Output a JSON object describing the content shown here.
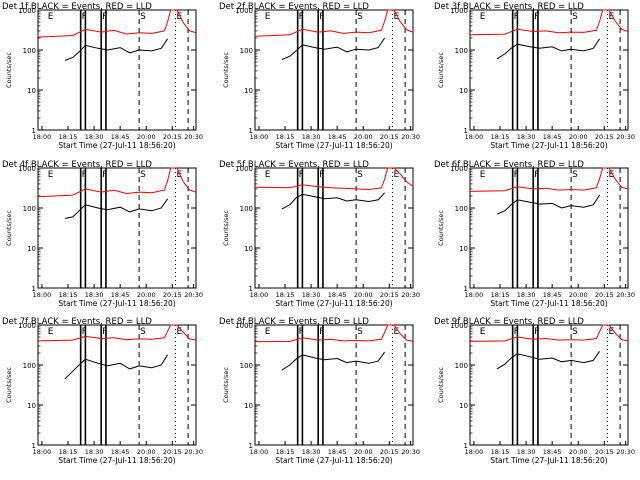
{
  "figure": {
    "xlabel": "Start Time (27-Jul-11 18:56:20)",
    "ylabel": "Counts/sec"
  },
  "chart_data": [
    {
      "type": "line",
      "title": "Det  1f BLACK = Events, RED = LLD",
      "ylim": [
        1,
        1000
      ],
      "yscale": "log",
      "y_ticks": [
        "1",
        "10",
        "100",
        "1000"
      ],
      "x_ticks": [
        "18:00",
        "18:15",
        "18:30",
        "18:45",
        "20:00",
        "20:15",
        "20:30"
      ],
      "markers": [
        {
          "label": "E"
        },
        {
          "label": "F"
        },
        {
          "label": "F"
        },
        {
          "label": "S"
        },
        {
          "label": "E"
        }
      ],
      "series": [
        {
          "color": "#ff0000",
          "x": [
            0.0,
            0.22,
            0.3,
            0.4,
            0.48,
            0.56,
            0.64,
            0.72,
            0.8,
            0.82,
            0.84,
            0.88,
            0.92,
            0.96,
            1.0
          ],
          "values": [
            210,
            230,
            330,
            280,
            310,
            250,
            270,
            260,
            300,
            500,
            1000,
            1000,
            480,
            300,
            270
          ]
        },
        {
          "color": "#000000",
          "x": [
            0.17,
            0.22,
            0.26,
            0.3,
            0.38,
            0.44,
            0.52,
            0.58,
            0.64,
            0.72,
            0.78,
            0.82
          ],
          "values": [
            55,
            65,
            90,
            130,
            110,
            100,
            115,
            85,
            100,
            95,
            110,
            190
          ]
        }
      ]
    },
    {
      "type": "line",
      "title": "Det  2f BLACK = Events, RED = LLD",
      "ylim": [
        1,
        1000
      ],
      "yscale": "log",
      "y_ticks": [
        "1",
        "10",
        "100",
        "1000"
      ],
      "x_ticks": [
        "18:00",
        "18:15",
        "18:30",
        "18:45",
        "20:00",
        "20:15",
        "20:30"
      ],
      "markers": [
        {
          "label": "E"
        },
        {
          "label": "F"
        },
        {
          "label": "F"
        },
        {
          "label": "S"
        },
        {
          "label": "E"
        }
      ],
      "series": [
        {
          "color": "#ff0000",
          "x": [
            0.0,
            0.22,
            0.3,
            0.4,
            0.48,
            0.56,
            0.64,
            0.72,
            0.8,
            0.82,
            0.84,
            0.88,
            0.92,
            0.96,
            1.0
          ],
          "values": [
            220,
            240,
            330,
            280,
            300,
            260,
            280,
            270,
            310,
            520,
            1000,
            1000,
            500,
            320,
            280
          ]
        },
        {
          "color": "#000000",
          "x": [
            0.17,
            0.22,
            0.26,
            0.3,
            0.38,
            0.44,
            0.52,
            0.58,
            0.64,
            0.72,
            0.78,
            0.82
          ],
          "values": [
            58,
            70,
            95,
            135,
            115,
            105,
            118,
            90,
            105,
            100,
            115,
            200
          ]
        }
      ]
    },
    {
      "type": "line",
      "title": "Det  3f BLACK = Events, RED = LLD",
      "ylim": [
        1,
        1000
      ],
      "yscale": "log",
      "y_ticks": [
        "1",
        "10",
        "100",
        "1000"
      ],
      "x_ticks": [
        "18:00",
        "18:15",
        "18:30",
        "18:45",
        "20:00",
        "20:15",
        "20:30"
      ],
      "markers": [
        {
          "label": "E"
        },
        {
          "label": "F"
        },
        {
          "label": "F"
        },
        {
          "label": "S"
        },
        {
          "label": "E"
        }
      ],
      "series": [
        {
          "color": "#ff0000",
          "x": [
            0.0,
            0.22,
            0.3,
            0.4,
            0.48,
            0.56,
            0.64,
            0.72,
            0.8,
            0.82,
            0.84,
            0.88,
            0.92,
            0.96,
            1.0
          ],
          "values": [
            240,
            250,
            330,
            290,
            300,
            270,
            280,
            275,
            310,
            520,
            1000,
            1000,
            520,
            330,
            290
          ]
        },
        {
          "color": "#000000",
          "x": [
            0.17,
            0.22,
            0.26,
            0.3,
            0.38,
            0.44,
            0.52,
            0.58,
            0.64,
            0.72,
            0.78,
            0.82
          ],
          "values": [
            60,
            80,
            110,
            140,
            120,
            110,
            120,
            95,
            105,
            95,
            110,
            190
          ]
        }
      ]
    },
    {
      "type": "line",
      "title": "Det  4f BLACK = Events, RED = LLD",
      "ylim": [
        1,
        1000
      ],
      "yscale": "log",
      "y_ticks": [
        "1",
        "10",
        "100",
        "1000"
      ],
      "x_ticks": [
        "18:00",
        "18:15",
        "18:30",
        "18:45",
        "20:00",
        "20:15",
        "20:30"
      ],
      "markers": [
        {
          "label": "E"
        },
        {
          "label": "F"
        },
        {
          "label": "F"
        },
        {
          "label": "S"
        },
        {
          "label": "E"
        }
      ],
      "series": [
        {
          "color": "#ff0000",
          "x": [
            0.0,
            0.22,
            0.3,
            0.4,
            0.48,
            0.56,
            0.64,
            0.72,
            0.8,
            0.82,
            0.84,
            0.88,
            0.92,
            0.96,
            1.0
          ],
          "values": [
            190,
            210,
            300,
            250,
            280,
            230,
            250,
            240,
            280,
            480,
            1000,
            1000,
            450,
            280,
            250
          ]
        },
        {
          "color": "#000000",
          "x": [
            0.17,
            0.22,
            0.26,
            0.3,
            0.38,
            0.44,
            0.52,
            0.58,
            0.64,
            0.72,
            0.78,
            0.82
          ],
          "values": [
            55,
            60,
            85,
            120,
            100,
            90,
            105,
            80,
            95,
            85,
            100,
            170
          ]
        }
      ]
    },
    {
      "type": "line",
      "title": "Det  5f BLACK = Events, RED = LLD",
      "ylim": [
        1,
        1000
      ],
      "yscale": "log",
      "y_ticks": [
        "1",
        "10",
        "100",
        "1000"
      ],
      "x_ticks": [
        "18:00",
        "18:15",
        "18:30",
        "18:45",
        "20:00",
        "20:15",
        "20:30"
      ],
      "markers": [
        {
          "label": "E"
        },
        {
          "label": "F"
        },
        {
          "label": "F"
        },
        {
          "label": "S"
        },
        {
          "label": "E"
        }
      ],
      "series": [
        {
          "color": "#ff0000",
          "x": [
            0.0,
            0.22,
            0.3,
            0.4,
            0.48,
            0.56,
            0.64,
            0.72,
            0.8,
            0.82,
            0.84,
            0.88,
            0.92,
            0.96,
            1.0
          ],
          "values": [
            330,
            320,
            380,
            340,
            320,
            310,
            300,
            290,
            320,
            520,
            1000,
            1000,
            700,
            450,
            350
          ]
        },
        {
          "color": "#000000",
          "x": [
            0.17,
            0.22,
            0.26,
            0.3,
            0.38,
            0.44,
            0.52,
            0.58,
            0.64,
            0.72,
            0.78,
            0.82
          ],
          "values": [
            95,
            120,
            180,
            220,
            190,
            170,
            180,
            150,
            160,
            145,
            160,
            240
          ]
        }
      ]
    },
    {
      "type": "line",
      "title": "Det  6f BLACK = Events, RED = LLD",
      "ylim": [
        1,
        1000
      ],
      "yscale": "log",
      "y_ticks": [
        "1",
        "10",
        "100",
        "1000"
      ],
      "x_ticks": [
        "18:00",
        "18:15",
        "18:30",
        "18:45",
        "20:00",
        "20:15",
        "20:30"
      ],
      "markers": [
        {
          "label": "E"
        },
        {
          "label": "F"
        },
        {
          "label": "F"
        },
        {
          "label": "S"
        },
        {
          "label": "E"
        }
      ],
      "series": [
        {
          "color": "#ff0000",
          "x": [
            0.0,
            0.22,
            0.3,
            0.4,
            0.48,
            0.56,
            0.64,
            0.72,
            0.8,
            0.82,
            0.84,
            0.88,
            0.92,
            0.96,
            1.0
          ],
          "values": [
            260,
            270,
            340,
            300,
            310,
            280,
            290,
            280,
            320,
            540,
            1000,
            1000,
            520,
            330,
            300
          ]
        },
        {
          "color": "#000000",
          "x": [
            0.17,
            0.22,
            0.26,
            0.3,
            0.38,
            0.44,
            0.52,
            0.58,
            0.64,
            0.72,
            0.78,
            0.82
          ],
          "values": [
            70,
            85,
            120,
            160,
            140,
            125,
            130,
            100,
            115,
            105,
            120,
            210
          ]
        }
      ]
    },
    {
      "type": "line",
      "title": "Det  7f BLACK = Events, RED = LLD",
      "ylim": [
        1,
        1000
      ],
      "yscale": "log",
      "y_ticks": [
        "1",
        "10",
        "100",
        "1000"
      ],
      "x_ticks": [
        "18:00",
        "18:15",
        "18:30",
        "18:45",
        "20:00",
        "20:15",
        "20:30"
      ],
      "markers": [
        {
          "label": "E"
        },
        {
          "label": "F"
        },
        {
          "label": "F"
        },
        {
          "label": "S"
        },
        {
          "label": "E"
        }
      ],
      "series": [
        {
          "color": "#ff0000",
          "x": [
            0.0,
            0.22,
            0.3,
            0.4,
            0.48,
            0.56,
            0.64,
            0.72,
            0.8,
            0.82,
            0.84,
            0.88,
            0.92,
            0.96,
            1.0
          ],
          "values": [
            400,
            420,
            520,
            460,
            480,
            430,
            450,
            440,
            480,
            700,
            1000,
            1000,
            650,
            450,
            420
          ]
        },
        {
          "color": "#000000",
          "x": [
            0.17,
            0.22,
            0.26,
            0.3,
            0.38,
            0.44,
            0.52,
            0.58,
            0.64,
            0.72,
            0.78,
            0.82
          ],
          "values": [
            45,
            70,
            100,
            140,
            110,
            95,
            110,
            80,
            95,
            85,
            100,
            180
          ]
        }
      ]
    },
    {
      "type": "line",
      "title": "Det  8f BLACK = Events, RED = LLD",
      "ylim": [
        1,
        1000
      ],
      "yscale": "log",
      "y_ticks": [
        "1",
        "10",
        "100",
        "1000"
      ],
      "x_ticks": [
        "18:00",
        "18:15",
        "18:30",
        "18:45",
        "20:00",
        "20:15",
        "20:30"
      ],
      "markers": [
        {
          "label": "E"
        },
        {
          "label": "F"
        },
        {
          "label": "F"
        },
        {
          "label": "S"
        },
        {
          "label": "E"
        }
      ],
      "series": [
        {
          "color": "#ff0000",
          "x": [
            0.0,
            0.22,
            0.3,
            0.4,
            0.48,
            0.56,
            0.64,
            0.72,
            0.8,
            0.82,
            0.84,
            0.88,
            0.92,
            0.96,
            1.0
          ],
          "values": [
            380,
            390,
            480,
            420,
            440,
            400,
            410,
            400,
            440,
            650,
            1000,
            1000,
            600,
            420,
            390
          ]
        },
        {
          "color": "#000000",
          "x": [
            0.17,
            0.22,
            0.26,
            0.3,
            0.38,
            0.44,
            0.52,
            0.58,
            0.64,
            0.72,
            0.78,
            0.82
          ],
          "values": [
            75,
            100,
            140,
            180,
            150,
            135,
            145,
            115,
            125,
            110,
            125,
            210
          ]
        }
      ]
    },
    {
      "type": "line",
      "title": "Det  9f BLACK = Events, RED = LLD",
      "ylim": [
        1,
        1000
      ],
      "yscale": "log",
      "y_ticks": [
        "1",
        "10",
        "100",
        "1000"
      ],
      "x_ticks": [
        "18:00",
        "18:15",
        "18:30",
        "18:45",
        "20:00",
        "20:15",
        "20:30"
      ],
      "markers": [
        {
          "label": "E"
        },
        {
          "label": "F"
        },
        {
          "label": "F"
        },
        {
          "label": "S"
        },
        {
          "label": "E"
        }
      ],
      "series": [
        {
          "color": "#ff0000",
          "x": [
            0.0,
            0.22,
            0.3,
            0.4,
            0.48,
            0.56,
            0.64,
            0.72,
            0.8,
            0.82,
            0.84,
            0.88,
            0.92,
            0.96,
            1.0
          ],
          "values": [
            390,
            400,
            500,
            440,
            460,
            420,
            430,
            420,
            460,
            680,
            1000,
            1000,
            620,
            430,
            400
          ]
        },
        {
          "color": "#000000",
          "x": [
            0.17,
            0.22,
            0.26,
            0.3,
            0.38,
            0.44,
            0.52,
            0.58,
            0.64,
            0.72,
            0.78,
            0.82
          ],
          "values": [
            80,
            105,
            150,
            190,
            160,
            140,
            150,
            120,
            130,
            115,
            130,
            220
          ]
        }
      ]
    }
  ]
}
